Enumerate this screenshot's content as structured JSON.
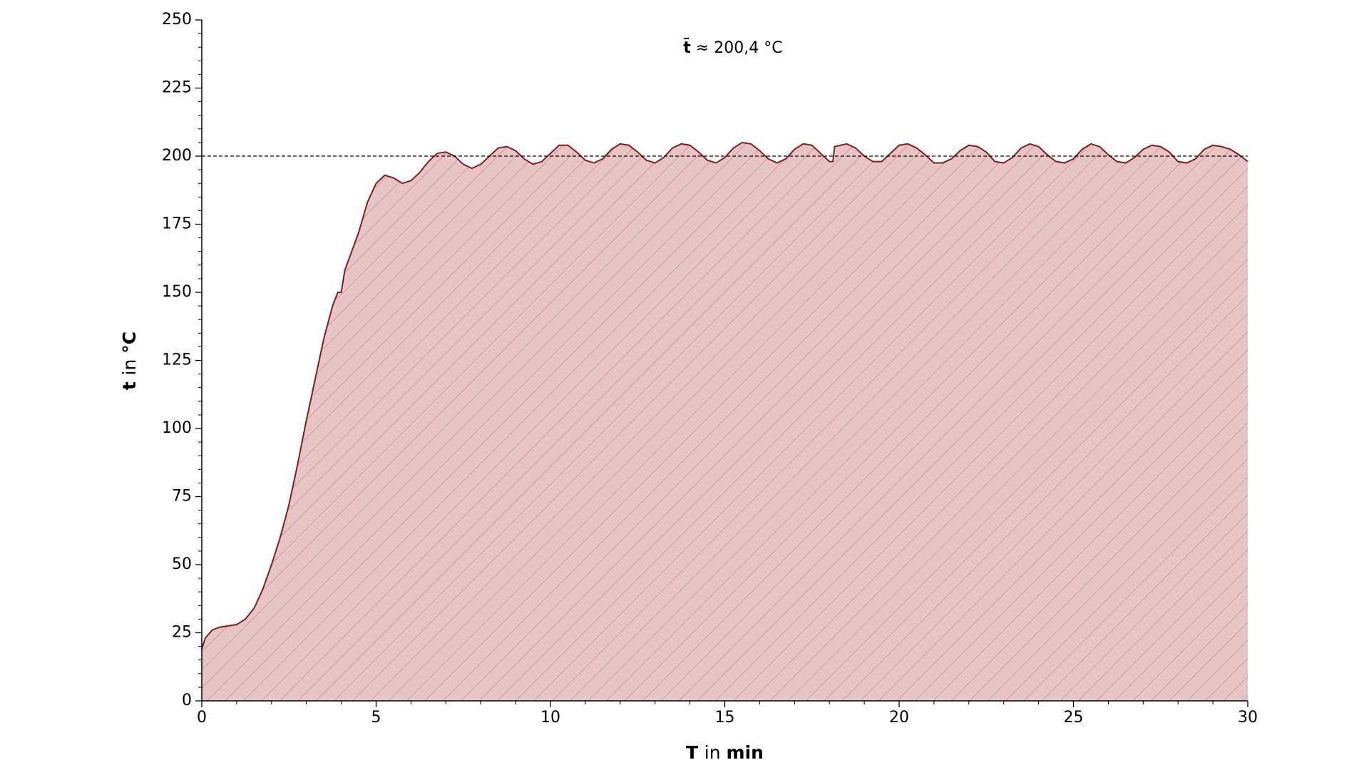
{
  "chart_data": {
    "type": "area",
    "annotation": {
      "symbol": "t̄",
      "text": "≈ 200,4 °C"
    },
    "xlabel": "T in min",
    "ylabel": "t in °C",
    "x": [
      0,
      0.1,
      0.3,
      0.5,
      1.0,
      1.25,
      1.5,
      1.75,
      2.0,
      2.25,
      2.5,
      2.75,
      3.0,
      3.25,
      3.5,
      3.75,
      3.9,
      4.0,
      4.1,
      4.5,
      4.75,
      5.0,
      5.25,
      5.5,
      5.75,
      6.0,
      6.25,
      6.5,
      6.75,
      7.0,
      7.25,
      7.5,
      7.75,
      8.0,
      8.25,
      8.5,
      8.75,
      9.0,
      9.25,
      9.5,
      9.75,
      10.0,
      10.25,
      10.5,
      10.75,
      11.0,
      11.25,
      11.5,
      11.75,
      12.0,
      12.25,
      12.5,
      12.75,
      13.0,
      13.25,
      13.5,
      13.75,
      14.0,
      14.25,
      14.5,
      14.75,
      15.0,
      15.25,
      15.5,
      15.75,
      16.0,
      16.25,
      16.5,
      16.75,
      17.0,
      17.25,
      17.5,
      17.75,
      18.0,
      18.1,
      18.15,
      18.5,
      18.75,
      19.0,
      19.25,
      19.5,
      19.75,
      20.0,
      20.25,
      20.5,
      20.75,
      21.0,
      21.25,
      21.5,
      21.75,
      22.0,
      22.25,
      22.5,
      22.75,
      23.0,
      23.25,
      23.5,
      23.75,
      24.0,
      24.25,
      24.5,
      24.75,
      25.0,
      25.25,
      25.5,
      25.75,
      26.0,
      26.25,
      26.5,
      26.75,
      27.0,
      27.25,
      27.5,
      27.75,
      28.0,
      28.25,
      28.5,
      28.75,
      29.0,
      29.25,
      29.5,
      29.75,
      30.0
    ],
    "values": [
      19,
      23,
      26,
      27,
      28,
      30,
      34,
      41,
      50,
      60,
      72,
      87,
      103,
      118,
      133,
      145,
      150,
      150,
      158,
      172,
      183,
      190,
      193,
      192,
      190,
      191,
      194,
      198,
      201,
      201.5,
      200,
      197,
      195.5,
      197,
      200,
      203,
      203.5,
      202,
      199,
      197,
      198,
      201,
      204,
      204,
      201.5,
      198.5,
      197.5,
      199,
      202.5,
      204.5,
      204,
      201.5,
      198.5,
      197.5,
      199.5,
      203,
      204.5,
      204,
      201.5,
      198.5,
      197.5,
      199.5,
      203,
      205,
      204.5,
      202,
      199,
      197.5,
      199,
      202.5,
      204.5,
      204,
      201,
      198,
      198,
      203.5,
      204.5,
      203,
      200,
      198,
      198,
      201,
      204,
      204.5,
      203,
      200.5,
      197.5,
      197.5,
      199,
      202,
      204,
      203.5,
      201.5,
      198,
      197.5,
      199.5,
      203,
      204.5,
      203.5,
      200.5,
      198,
      197.5,
      199,
      202.5,
      204.5,
      203.5,
      200.5,
      198,
      197.5,
      199.5,
      202.5,
      204,
      203.5,
      201.5,
      198,
      197.5,
      199,
      202.5,
      204,
      203.5,
      202.5,
      200.5,
      198
    ],
    "color": "#8b1a1a",
    "fill": "#e6c5c6",
    "hatch_color": "#d58a8c",
    "hline": 200,
    "xlim": [
      0,
      30
    ],
    "ylim": [
      0,
      250
    ],
    "xticks": [
      0,
      5,
      10,
      15,
      20,
      25,
      30
    ],
    "yticks": [
      0,
      25,
      50,
      75,
      100,
      125,
      150,
      175,
      200,
      225,
      250
    ]
  }
}
